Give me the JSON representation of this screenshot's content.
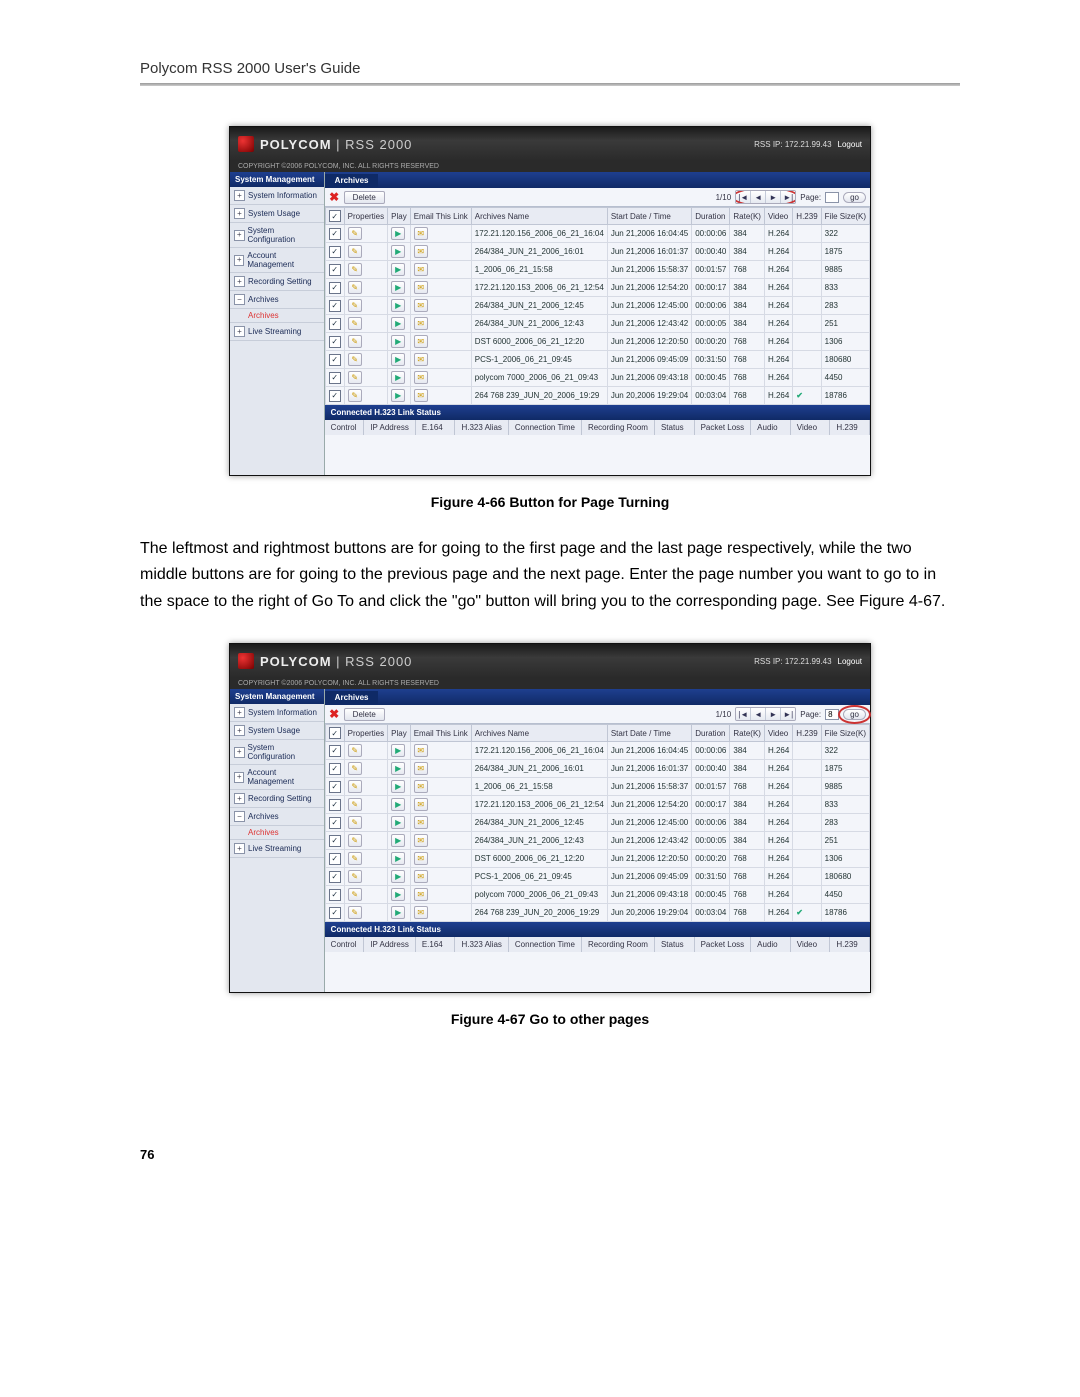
{
  "doc": {
    "header": "Polycom RSS 2000 User's Guide",
    "caption1": "Figure 4-66 Button for Page Turning",
    "body": "The leftmost and rightmost buttons are for going to the first page and the last page respectively, while the two middle buttons are for going to the previous page and the next page. Enter the page number you want to go to in the space to the right of Go To and click the \"go\" button will bring you to the corresponding page. See Figure 4-67.",
    "caption2": "Figure 4-67 Go to other pages",
    "pageNum": "76"
  },
  "app": {
    "brand": "POLYCOM",
    "product": "RSS 2000",
    "copyright": "COPYRIGHT ©2006 POLYCOM, INC. ALL RIGHTS RESERVED",
    "rssIp": "RSS IP: 172.21.99.43",
    "logout": "Logout",
    "sideHeader": "System Management",
    "side": [
      {
        "pm": "+",
        "label": "System Information"
      },
      {
        "pm": "+",
        "label": "System Usage"
      },
      {
        "pm": "+",
        "label": "System Configuration"
      },
      {
        "pm": "+",
        "label": "Account Management"
      },
      {
        "pm": "+",
        "label": "Recording Setting"
      },
      {
        "pm": "−",
        "label": "Archives"
      },
      {
        "pm": "+",
        "label": "Live Streaming"
      }
    ],
    "sideSub": "Archives",
    "tab": "Archives",
    "delete": "Delete",
    "pageIndicator": "1/10",
    "nav": [
      "|◄",
      "◄",
      "►",
      "►|"
    ],
    "pageLabel": "Page:",
    "pageValue": "8",
    "go": "go",
    "columns": [
      "",
      "Properties",
      "Play",
      "Email This Link",
      "Archives Name",
      "Start Date / Time",
      "Duration",
      "Rate(K)",
      "Video",
      "H.239",
      "File Size(K)"
    ],
    "rows": [
      {
        "name": "172.21.120.156_2006_06_21_16:04",
        "date": "Jun 21,2006 16:04:45",
        "dur": "00:00:06",
        "rate": "384",
        "video": "H.264",
        "h239": "",
        "size": "322"
      },
      {
        "name": "264/384_JUN_21_2006_16:01",
        "date": "Jun 21,2006 16:01:37",
        "dur": "00:00:40",
        "rate": "384",
        "video": "H.264",
        "h239": "",
        "size": "1875"
      },
      {
        "name": "1_2006_06_21_15:58",
        "date": "Jun 21,2006 15:58:37",
        "dur": "00:01:57",
        "rate": "768",
        "video": "H.264",
        "h239": "",
        "size": "9885"
      },
      {
        "name": "172.21.120.153_2006_06_21_12:54",
        "date": "Jun 21,2006 12:54:20",
        "dur": "00:00:17",
        "rate": "384",
        "video": "H.264",
        "h239": "",
        "size": "833"
      },
      {
        "name": "264/384_JUN_21_2006_12:45",
        "date": "Jun 21,2006 12:45:00",
        "dur": "00:00:06",
        "rate": "384",
        "video": "H.264",
        "h239": "",
        "size": "283"
      },
      {
        "name": "264/384_JUN_21_2006_12:43",
        "date": "Jun 21,2006 12:43:42",
        "dur": "00:00:05",
        "rate": "384",
        "video": "H.264",
        "h239": "",
        "size": "251"
      },
      {
        "name": "DST 6000_2006_06_21_12:20",
        "date": "Jun 21,2006 12:20:50",
        "dur": "00:00:20",
        "rate": "768",
        "video": "H.264",
        "h239": "",
        "size": "1306"
      },
      {
        "name": "PCS-1_2006_06_21_09:45",
        "date": "Jun 21,2006 09:45:09",
        "dur": "00:31:50",
        "rate": "768",
        "video": "H.264",
        "h239": "",
        "size": "180680"
      },
      {
        "name": "polycom 7000_2006_06_21_09:43",
        "date": "Jun 21,2006 09:43:18",
        "dur": "00:00:45",
        "rate": "768",
        "video": "H.264",
        "h239": "",
        "size": "4450"
      },
      {
        "name": "264 768 239_JUN_20_2006_19:29",
        "date": "Jun 20,2006 19:29:04",
        "dur": "00:03:04",
        "rate": "768",
        "video": "H.264",
        "h239": "✔",
        "size": "18786"
      }
    ],
    "statusHeader": "Connected H.323 Link Status",
    "statusCols": [
      "Control",
      "IP Address",
      "E.164",
      "H.323 Alias",
      "Connection Time",
      "Recording Room",
      "Status",
      "Packet Loss",
      "Audio",
      "Video",
      "H.239"
    ]
  }
}
